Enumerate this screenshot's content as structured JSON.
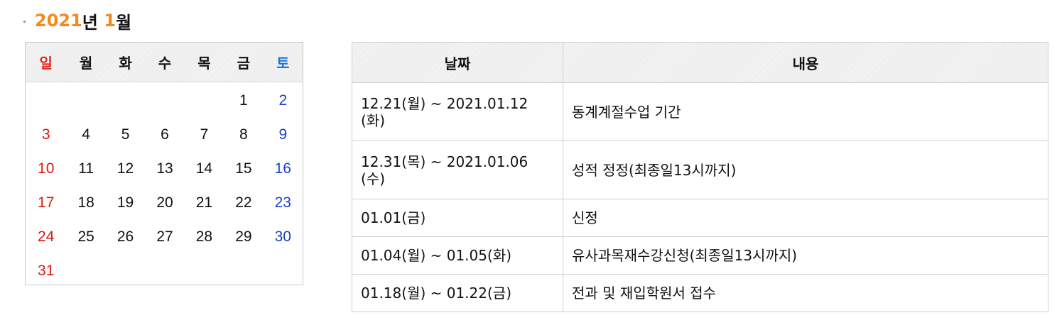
{
  "title": {
    "year": "2021",
    "year_suffix": "년 ",
    "month": "1",
    "month_suffix": "월"
  },
  "calendar": {
    "weekdays": [
      "일",
      "월",
      "화",
      "수",
      "목",
      "금",
      "토"
    ],
    "weeks": [
      [
        "",
        "",
        "",
        "",
        "",
        "1",
        "2"
      ],
      [
        "3",
        "4",
        "5",
        "6",
        "7",
        "8",
        "9"
      ],
      [
        "10",
        "11",
        "12",
        "13",
        "14",
        "15",
        "16"
      ],
      [
        "17",
        "18",
        "19",
        "20",
        "21",
        "22",
        "23"
      ],
      [
        "24",
        "25",
        "26",
        "27",
        "28",
        "29",
        "30"
      ],
      [
        "31",
        "",
        "",
        "",
        "",
        "",
        ""
      ]
    ]
  },
  "schedule": {
    "headers": {
      "date": "날짜",
      "content": "내용"
    },
    "rows": [
      {
        "date_line1": "12.21(월) ~ 2021.01.12",
        "date_line2": "(화)",
        "content": "동계계절수업 기간"
      },
      {
        "date_line1": "12.31(목) ~ 2021.01.06",
        "date_line2": "(수)",
        "content": "성적 정정(최종일13시까지)"
      },
      {
        "date_line1": "01.01(금)",
        "date_line2": "",
        "content": "신정"
      },
      {
        "date_line1": "01.04(월) ~ 01.05(화)",
        "date_line2": "",
        "content": "유사과목재수강신청(최종일13시까지)"
      },
      {
        "date_line1": "01.18(월) ~ 01.22(금)",
        "date_line2": "",
        "content": "전과 및 재입학원서 접수"
      }
    ]
  },
  "colors": {
    "accent": "#f28a1e",
    "sunday": "#d81b10",
    "saturday": "#1a3fd2"
  }
}
